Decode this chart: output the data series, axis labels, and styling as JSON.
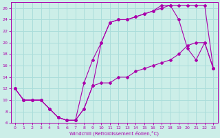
{
  "xlabel": "Windchill (Refroidissement éolien,°C)",
  "bg_color": "#cceee8",
  "grid_color": "#aaddda",
  "line_color": "#aa00aa",
  "xlim": [
    -0.5,
    23.5
  ],
  "ylim": [
    6,
    27
  ],
  "yticks": [
    6,
    8,
    10,
    12,
    14,
    16,
    18,
    20,
    22,
    24,
    26
  ],
  "xticks": [
    0,
    1,
    2,
    3,
    4,
    5,
    6,
    7,
    8,
    9,
    10,
    11,
    12,
    13,
    14,
    15,
    16,
    17,
    18,
    19,
    20,
    21,
    22,
    23
  ],
  "series1_x": [
    0,
    1,
    2,
    3,
    4,
    5,
    6,
    7,
    8,
    9,
    10,
    11,
    12,
    13,
    14,
    15,
    16,
    17,
    18,
    19,
    20,
    21,
    22,
    23
  ],
  "series1_y": [
    12,
    10,
    10,
    10,
    8.5,
    7,
    6.5,
    6.5,
    8.5,
    12.5,
    13,
    13,
    14,
    14,
    15,
    15.5,
    16,
    16.5,
    17,
    18,
    19.5,
    20,
    20,
    15.5
  ],
  "series2_x": [
    0,
    1,
    2,
    3,
    4,
    5,
    6,
    7,
    8,
    9,
    10,
    11,
    12,
    13,
    14,
    15,
    16,
    17,
    18,
    19,
    20,
    21,
    22,
    23
  ],
  "series2_y": [
    12,
    10,
    10,
    10,
    8.5,
    7,
    6.5,
    6.5,
    13,
    17,
    20,
    23.5,
    24,
    24,
    24.5,
    25,
    25.5,
    26,
    26.5,
    24,
    19,
    17,
    20,
    15.5
  ],
  "series3_x": [
    0,
    1,
    2,
    3,
    4,
    5,
    6,
    7,
    8,
    9,
    10,
    11,
    12,
    13,
    14,
    15,
    16,
    17,
    18,
    19,
    20,
    21,
    22,
    23
  ],
  "series3_y": [
    12,
    10,
    10,
    10,
    8.5,
    7,
    6.5,
    6.5,
    8.5,
    12.5,
    20,
    23.5,
    24,
    24,
    24.5,
    25,
    25.5,
    26.5,
    26.5,
    26.5,
    26.5,
    26.5,
    26.5,
    15.5
  ]
}
